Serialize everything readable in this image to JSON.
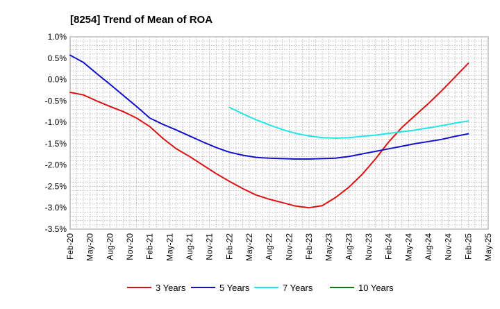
{
  "chart_data": {
    "type": "line",
    "title": "[8254]  Trend of Mean of ROA",
    "xlabel": "",
    "ylabel": "",
    "ylim": [
      -3.5,
      1.0
    ],
    "y_ticks": [
      1.0,
      0.5,
      0.0,
      -0.5,
      -1.0,
      -1.5,
      -2.0,
      -2.5,
      -3.0,
      -3.5
    ],
    "y_tick_labels": [
      "1.0%",
      "0.5%",
      "0.0%",
      "-0.5%",
      "-1.0%",
      "-1.5%",
      "-2.0%",
      "-2.5%",
      "-3.0%",
      "-3.5%"
    ],
    "x_tick_labels": [
      "Feb-20",
      "May-20",
      "Aug-20",
      "Nov-20",
      "Feb-21",
      "May-21",
      "Aug-21",
      "Nov-21",
      "Feb-22",
      "May-22",
      "Aug-22",
      "Nov-22",
      "Feb-23",
      "May-23",
      "Aug-23",
      "Nov-23",
      "Feb-24",
      "May-24",
      "Aug-24",
      "Nov-24",
      "Feb-25",
      "May-25"
    ],
    "x_unit": "months since Feb-20",
    "x_range": [
      0,
      63
    ],
    "grid": true,
    "legend_position": "bottom",
    "series": [
      {
        "name": "3 Years",
        "color": "#dd1111",
        "x": [
          0,
          2,
          4,
          6,
          8,
          10,
          12,
          14,
          16,
          18,
          20,
          22,
          24,
          26,
          28,
          30,
          32,
          34,
          36,
          38,
          40,
          42,
          44,
          46,
          48,
          50,
          52,
          54,
          56,
          58,
          60
        ],
        "values": [
          -0.3,
          -0.36,
          -0.5,
          -0.63,
          -0.75,
          -0.9,
          -1.1,
          -1.38,
          -1.62,
          -1.8,
          -2.0,
          -2.2,
          -2.38,
          -2.55,
          -2.7,
          -2.8,
          -2.88,
          -2.96,
          -3.0,
          -2.95,
          -2.76,
          -2.52,
          -2.22,
          -1.86,
          -1.46,
          -1.12,
          -0.84,
          -0.56,
          -0.26,
          0.06,
          0.38
        ]
      },
      {
        "name": "5 Years",
        "color": "#1111cc",
        "x": [
          0,
          2,
          4,
          6,
          8,
          10,
          12,
          14,
          16,
          18,
          20,
          22,
          24,
          26,
          28,
          30,
          32,
          34,
          36,
          38,
          40,
          42,
          44,
          46,
          48,
          50,
          52,
          54,
          56,
          58,
          60
        ],
        "values": [
          0.57,
          0.4,
          0.14,
          -0.11,
          -0.37,
          -0.63,
          -0.9,
          -1.05,
          -1.18,
          -1.32,
          -1.46,
          -1.59,
          -1.7,
          -1.77,
          -1.82,
          -1.84,
          -1.85,
          -1.86,
          -1.86,
          -1.85,
          -1.84,
          -1.8,
          -1.74,
          -1.68,
          -1.62,
          -1.56,
          -1.5,
          -1.45,
          -1.4,
          -1.33,
          -1.27
        ]
      },
      {
        "name": "7 Years",
        "color": "#22e5e5",
        "x": [
          24,
          26,
          28,
          30,
          32,
          34,
          36,
          38,
          40,
          42,
          44,
          46,
          48,
          50,
          52,
          54,
          56,
          58,
          60
        ],
        "values": [
          -0.65,
          -0.8,
          -0.94,
          -1.06,
          -1.17,
          -1.26,
          -1.32,
          -1.36,
          -1.37,
          -1.36,
          -1.33,
          -1.3,
          -1.26,
          -1.22,
          -1.18,
          -1.13,
          -1.08,
          -1.02,
          -0.97
        ]
      },
      {
        "name": "10 Years",
        "color": "#117711",
        "x": [],
        "values": []
      }
    ]
  }
}
